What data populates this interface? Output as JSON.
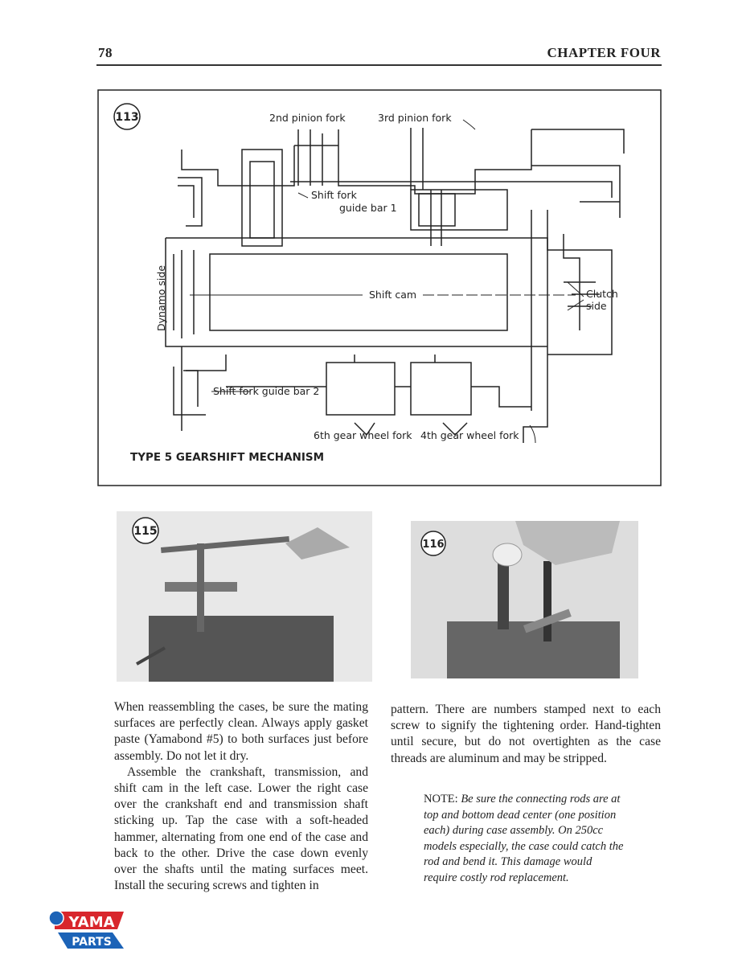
{
  "header": {
    "page_number": "78",
    "chapter": "CHAPTER FOUR"
  },
  "figure_113": {
    "number": "113",
    "labels": {
      "pinion_2": "2nd pinion fork",
      "pinion_3": "3rd pinion fork",
      "guide_bar_1": [
        "Shift fork",
        "guide bar 1"
      ],
      "dynamo_side": "Dynamo side",
      "shift_cam": "Shift cam",
      "clutch_side": [
        "Clutch",
        "side"
      ],
      "guide_bar_2": "Shift fork guide bar 2",
      "gear_6": "6th gear wheel fork",
      "gear_4": "4th gear wheel fork"
    },
    "caption": "TYPE 5 GEARSHIFT MECHANISM"
  },
  "figure_115": {
    "number": "115"
  },
  "figure_116": {
    "number": "116"
  },
  "body": {
    "left": [
      "When reassembling the cases, be sure the mating surfaces are perfectly clean. Always apply gasket paste (Yamabond #5) to both surfaces just before assembly. Do not let it dry.",
      "Assemble the crankshaft, transmission, and shift cam in the left case. Lower the right case over the crankshaft end and transmission shaft sticking up. Tap the case with a soft-headed hammer, alternating from one end of the case and back to the other. Drive the case down evenly over the shafts until the mating surfaces meet. Install the securing screws and tighten in"
    ],
    "right": "pattern. There are numbers stamped next to each screw to signify the tightening order. Hand-tighten until secure, but do not overtighten as the case threads are aluminum and may be stripped.",
    "note": {
      "label": "NOTE:",
      "text": "Be sure the connecting rods are at top and bottom dead center (one position each) during case assembly. On 250cc models especially, the case could catch the rod and bend it. This damage would require costly rod replacement."
    }
  },
  "logo": {
    "top": "YAMA",
    "bottom": "PARTS"
  }
}
